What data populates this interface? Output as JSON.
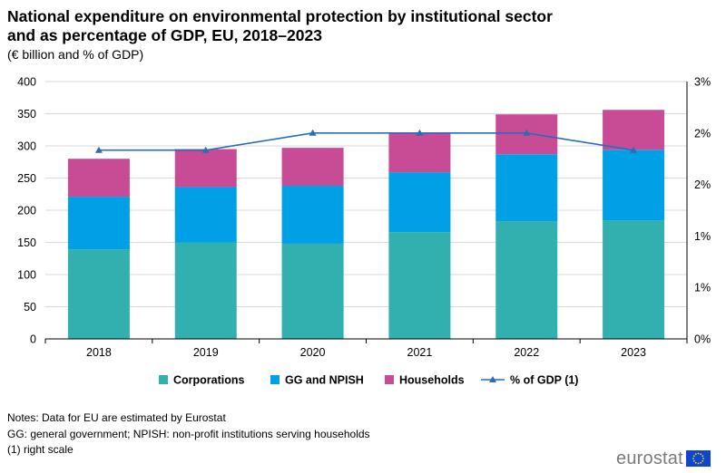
{
  "chart_data": {
    "type": "bar",
    "stacked": true,
    "title": "National expenditure on environmental protection by institutional sector and as percentage of GDP, EU, 2018–2023",
    "subtitle": "(€ billion and % of GDP)",
    "categories": [
      "2018",
      "2019",
      "2020",
      "2021",
      "2022",
      "2023"
    ],
    "series": [
      {
        "name": "Corporations",
        "color": "#32afaf",
        "values": [
          139,
          150,
          148,
          166,
          183,
          184
        ]
      },
      {
        "name": "GG and NPISH",
        "color": "#00a0e6",
        "values": [
          82,
          86,
          90,
          93,
          104,
          110
        ]
      },
      {
        "name": "Households",
        "color": "#c84b96",
        "values": [
          59,
          59,
          59,
          61,
          62,
          62
        ]
      }
    ],
    "line_series": {
      "name": "% of GDP (1)",
      "color": "#2a6db6",
      "axis": "right",
      "values": [
        2.2,
        2.2,
        2.4,
        2.4,
        2.4,
        2.2
      ]
    },
    "ylim": [
      0,
      400
    ],
    "yticks": [
      "0",
      "50",
      "100",
      "150",
      "200",
      "250",
      "300",
      "350",
      "400"
    ],
    "y2lim": [
      0,
      3
    ],
    "y2ticks": [
      "0%",
      "1%",
      "1%",
      "2%",
      "2%",
      "3%"
    ],
    "legend": [
      "Corporations",
      "GG and NPISH",
      "Households",
      "% of GDP (1)"
    ],
    "legend_position": "bottom",
    "grid": true
  },
  "notes": [
    "Notes: Data for EU are estimated by Eurostat",
    "GG: general government; NPISH: non-profit institutions serving households",
    "(1) right scale"
  ],
  "brand": "eurostat",
  "colors": {
    "flag_blue": "#0e47cb",
    "flag_star": "#ffdd00",
    "grid": "#d9d9d9",
    "axis": "#000000"
  }
}
